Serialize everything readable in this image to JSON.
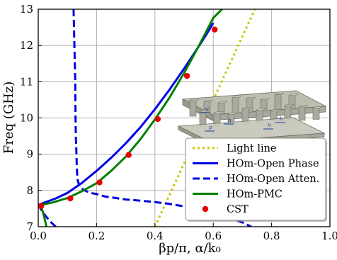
{
  "chart_data": {
    "type": "line",
    "title": "",
    "xlabel": "βp/π, α/k₀",
    "ylabel": "Freq (GHz)",
    "xlim": [
      0.0,
      1.0
    ],
    "ylim": [
      7,
      13
    ],
    "xticks": [
      "0.0",
      "0.2",
      "0.4",
      "0.6",
      "0.8",
      "1.0"
    ],
    "yticks": [
      "7",
      "8",
      "9",
      "10",
      "11",
      "12",
      "13"
    ],
    "grid": true,
    "legend_position": "bottom-right",
    "series": [
      {
        "name": "Light line",
        "style": "dotted",
        "color": "#c8c800",
        "x": [
          0.4,
          0.5,
          0.6,
          0.7,
          0.8
        ],
        "y": [
          7.0,
          8.75,
          10.5,
          12.25,
          14.0
        ]
      },
      {
        "name": "HOm-Open Phase",
        "style": "solid",
        "color": "#0000e6",
        "x": [
          0.0,
          0.02,
          0.06,
          0.1,
          0.15,
          0.2,
          0.25,
          0.3,
          0.35,
          0.4,
          0.45,
          0.5,
          0.55,
          0.58,
          0.6
        ],
        "y": [
          7.6,
          7.66,
          7.78,
          7.93,
          8.21,
          8.54,
          8.9,
          9.3,
          9.74,
          10.24,
          10.78,
          11.36,
          11.97,
          12.35,
          12.62
        ]
      },
      {
        "name": "HOm-Open Atten.",
        "style": "dashed",
        "color": "#0000e6",
        "x": [
          0.121,
          0.124,
          0.127,
          0.128,
          0.129,
          0.131,
          0.132,
          0.133,
          0.135,
          0.14,
          0.15,
          0.165,
          0.18,
          0.2,
          0.23,
          0.26,
          0.3,
          0.35,
          0.4,
          0.45,
          0.5,
          0.55,
          0.6,
          0.65,
          0.7,
          0.73
        ],
        "y": [
          13.0,
          12.0,
          11.0,
          10.0,
          9.5,
          9.0,
          8.7,
          8.5,
          8.3,
          8.15,
          8.05,
          7.98,
          7.93,
          7.9,
          7.83,
          7.8,
          7.75,
          7.72,
          7.68,
          7.63,
          7.56,
          7.48,
          7.38,
          7.25,
          7.12,
          7.0
        ]
      },
      {
        "name": "HOm-Open Atten.",
        "style": "dashed",
        "color": "#0000e6",
        "x": [
          0.06,
          0.04,
          0.025,
          0.012,
          0.004,
          0.0
        ],
        "y": [
          7.0,
          7.15,
          7.3,
          7.45,
          7.55,
          7.62
        ]
      },
      {
        "name": "HOm-PMC",
        "style": "solid",
        "color": "#008000",
        "x": [
          0.0,
          0.05,
          0.1,
          0.15,
          0.2,
          0.25,
          0.3,
          0.35,
          0.4,
          0.45,
          0.5,
          0.55,
          0.6,
          0.63
        ],
        "y": [
          7.58,
          7.67,
          7.79,
          7.98,
          8.2,
          8.54,
          8.93,
          9.41,
          9.96,
          10.56,
          11.24,
          11.98,
          12.76,
          13.0
        ]
      },
      {
        "name": "HOm-PMC",
        "style": "solid",
        "color": "#008000",
        "x": [
          0.01,
          0.018,
          0.024,
          0.028
        ],
        "y": [
          7.56,
          7.35,
          7.15,
          7.0
        ]
      },
      {
        "name": "CST",
        "style": "markers",
        "color": "#e60000",
        "x": [
          0.01,
          0.11,
          0.21,
          0.31,
          0.41,
          0.51,
          0.605
        ],
        "y": [
          7.57,
          7.78,
          8.22,
          8.98,
          9.97,
          11.16,
          12.44
        ]
      }
    ],
    "legend": [
      {
        "label": "Light line",
        "style": "dotted",
        "color": "#c8c800"
      },
      {
        "label": "HOm-Open Phase",
        "style": "solid",
        "color": "#0000e6"
      },
      {
        "label": "HOm-Open Atten.",
        "style": "dashed",
        "color": "#0000e6"
      },
      {
        "label": "HOm-PMC",
        "style": "solid",
        "color": "#008000"
      },
      {
        "label": "CST",
        "style": "markers",
        "color": "#e60000"
      }
    ],
    "inset": {
      "description_icon": "unit-cell-structure-icon",
      "labels": [
        "w",
        "p",
        "h",
        "h",
        "h"
      ]
    }
  }
}
